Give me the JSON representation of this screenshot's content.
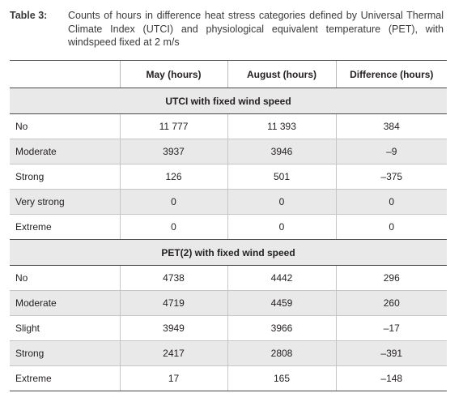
{
  "caption": {
    "label": "Table 3:",
    "text": "Counts of hours in difference heat stress categories defined by Universal Thermal Climate Index (UTCI) and physiological equivalent temperature (PET), with windspeed fixed at 2 m/s"
  },
  "table": {
    "columns": [
      "May (hours)",
      "August (hours)",
      "Difference (hours)"
    ],
    "sections": [
      {
        "title": "UTCI with fixed wind speed",
        "rows": [
          {
            "label": "No",
            "may": "11 777",
            "aug": "11 393",
            "diff": "384"
          },
          {
            "label": "Moderate",
            "may": "3937",
            "aug": "3946",
            "diff": "–9"
          },
          {
            "label": "Strong",
            "may": "126",
            "aug": "501",
            "diff": "–375"
          },
          {
            "label": "Very strong",
            "may": "0",
            "aug": "0",
            "diff": "0"
          },
          {
            "label": "Extreme",
            "may": "0",
            "aug": "0",
            "diff": "0"
          }
        ]
      },
      {
        "title": "PET(2) with fixed wind speed",
        "rows": [
          {
            "label": "No",
            "may": "4738",
            "aug": "4442",
            "diff": "296"
          },
          {
            "label": "Moderate",
            "may": "4719",
            "aug": "4459",
            "diff": "260"
          },
          {
            "label": "Slight",
            "may": "3949",
            "aug": "3966",
            "diff": "–17"
          },
          {
            "label": "Strong",
            "may": "2417",
            "aug": "2808",
            "diff": "–391"
          },
          {
            "label": "Extreme",
            "may": "17",
            "aug": "165",
            "diff": "–148"
          }
        ]
      }
    ]
  }
}
